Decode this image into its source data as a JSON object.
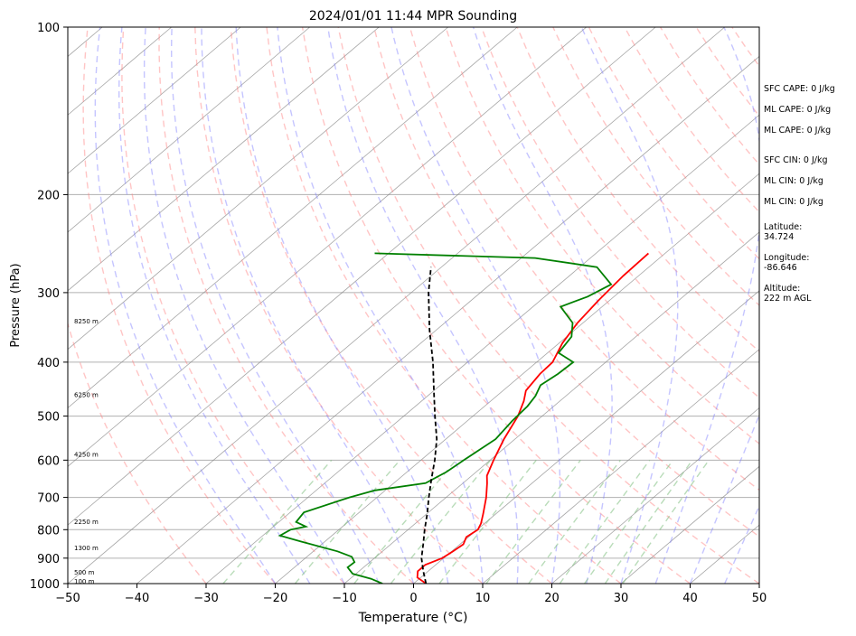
{
  "chart_data": {
    "type": "line",
    "title": "2024/01/01 11:44 MPR Sounding",
    "xlabel": "Temperature (°C)",
    "ylabel": "Pressure (hPa)",
    "xlim": [
      -50,
      50
    ],
    "ylim": [
      1000,
      100
    ],
    "y_scale": "log",
    "skew": "skew-T",
    "x_ticks": [
      "−50",
      "−40",
      "−30",
      "−20",
      "−10",
      "0",
      "10",
      "20",
      "30",
      "40",
      "50"
    ],
    "x_tick_values": [
      -50,
      -40,
      -30,
      -20,
      -10,
      0,
      10,
      20,
      30,
      40,
      50
    ],
    "y_ticks": [
      100,
      200,
      300,
      400,
      500,
      600,
      700,
      800,
      900,
      1000
    ],
    "grid": true,
    "background_lines": {
      "isotherms": "gray",
      "dry_adiabats": "#ff7f7f",
      "moist_adiabats": "#7f7fff",
      "mixing_ratio": "#7fbf7f"
    },
    "series": [
      {
        "color": "#ff0000",
        "points": [
          [
            1000,
            1.8
          ],
          [
            975,
            -0.5
          ],
          [
            950,
            -1.5
          ],
          [
            925,
            -1.5
          ],
          [
            900,
            -0.2
          ],
          [
            875,
            0.2
          ],
          [
            850,
            0.5
          ],
          [
            825,
            -0.3
          ],
          [
            800,
            0.1
          ],
          [
            780,
            -0.5
          ],
          [
            750,
            -1.8
          ],
          [
            700,
            -4.2
          ],
          [
            660,
            -6.5
          ],
          [
            640,
            -7.8
          ],
          [
            600,
            -9.5
          ],
          [
            550,
            -11.6
          ],
          [
            500,
            -13.5
          ],
          [
            470,
            -15.2
          ],
          [
            450,
            -16.7
          ],
          [
            420,
            -17.5
          ],
          [
            400,
            -17.7
          ],
          [
            370,
            -19.5
          ],
          [
            340,
            -20.8
          ],
          [
            310,
            -21.6
          ],
          [
            280,
            -22.2
          ],
          [
            255,
            -22.4
          ]
        ]
      },
      {
        "color": "#008000",
        "points": [
          [
            1000,
            -4.5
          ],
          [
            980,
            -7
          ],
          [
            960,
            -10.5
          ],
          [
            935,
            -12.3
          ],
          [
            915,
            -12.2
          ],
          [
            895,
            -13.5
          ],
          [
            875,
            -16.5
          ],
          [
            840,
            -23.5
          ],
          [
            820,
            -27.5
          ],
          [
            800,
            -27
          ],
          [
            790,
            -25.3
          ],
          [
            775,
            -27.5
          ],
          [
            745,
            -28
          ],
          [
            700,
            -24
          ],
          [
            680,
            -21.5
          ],
          [
            660,
            -15.4
          ],
          [
            630,
            -14.3
          ],
          [
            600,
            -13.8
          ],
          [
            550,
            -12.8
          ],
          [
            510,
            -13.5
          ],
          [
            480,
            -13.8
          ],
          [
            460,
            -14.4
          ],
          [
            440,
            -15.5
          ],
          [
            420,
            -14.9
          ],
          [
            400,
            -14.7
          ],
          [
            385,
            -18.4
          ],
          [
            360,
            -19.3
          ],
          [
            340,
            -21.5
          ],
          [
            318,
            -26
          ],
          [
            305,
            -23.8
          ],
          [
            290,
            -22.5
          ],
          [
            270,
            -27.5
          ],
          [
            260,
            -38
          ],
          [
            255,
            -62
          ]
        ]
      },
      {
        "color": "#000000",
        "dashed": true,
        "points": [
          [
            1000,
            1.8
          ],
          [
            950,
            -0.7
          ],
          [
            900,
            -3.2
          ],
          [
            850,
            -5.3
          ],
          [
            800,
            -7.6
          ],
          [
            750,
            -9.9
          ],
          [
            700,
            -12.5
          ],
          [
            650,
            -15.2
          ],
          [
            600,
            -18
          ],
          [
            550,
            -21.3
          ],
          [
            500,
            -25.5
          ],
          [
            450,
            -30
          ],
          [
            400,
            -35
          ],
          [
            350,
            -41
          ],
          [
            300,
            -47.5
          ],
          [
            270,
            -51.5
          ]
        ]
      }
    ],
    "height_labels": [
      {
        "p": 992,
        "label": "100 m"
      },
      {
        "p": 956,
        "label": "500 m"
      },
      {
        "p": 864,
        "label": "1300 m"
      },
      {
        "p": 775,
        "label": "2250 m"
      },
      {
        "p": 587,
        "label": "4250 m"
      },
      {
        "p": 459,
        "label": "6250 m"
      },
      {
        "p": 338,
        "label": "8250 m"
      }
    ],
    "annotations": [
      "SFC CAPE: 0 J/kg",
      "ML CAPE: 0 J/kg",
      "ML CAPE: 0 J/kg",
      "SFC CIN: 0 J/kg",
      "ML CIN: 0 J/kg",
      "ML CIN: 0 J/kg",
      "Latitude:\n34.724",
      "Longitude:\n-86.646",
      "Altitude:\n222 m AGL"
    ]
  }
}
